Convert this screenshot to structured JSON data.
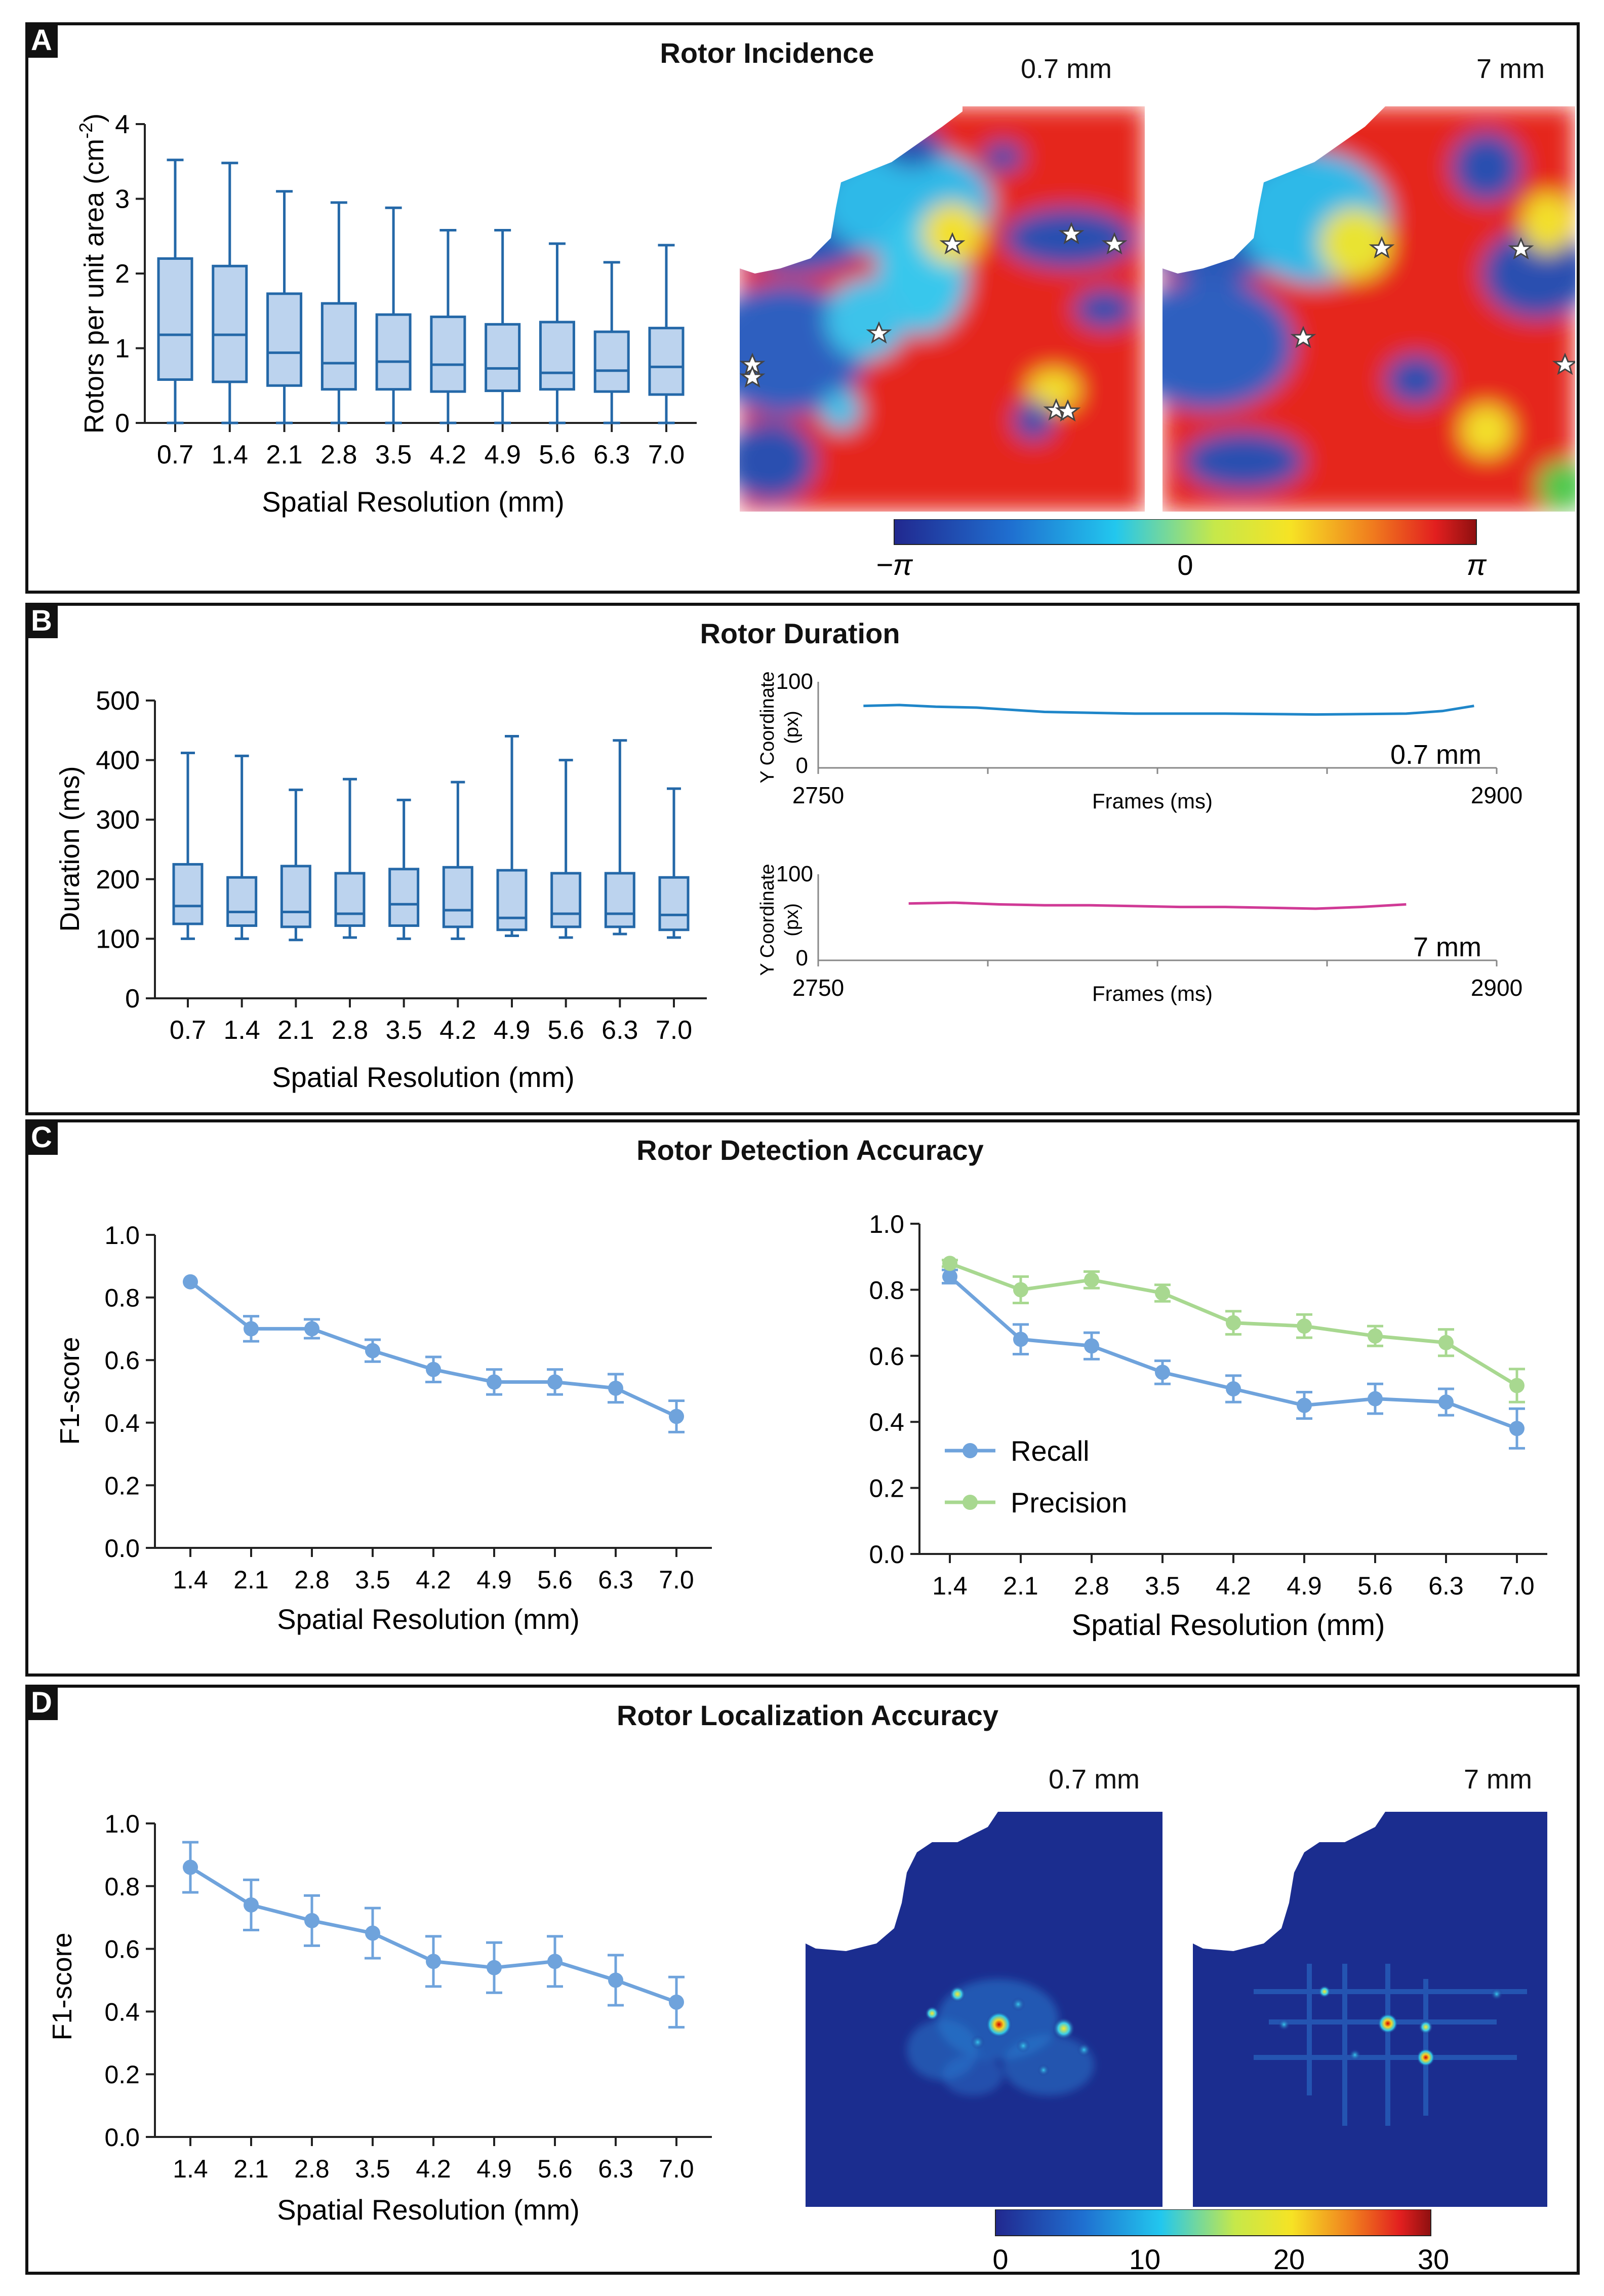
{
  "panels": {
    "A": {
      "letter": "A",
      "title": "Rotor Incidence",
      "map_labels": [
        "0.7 mm",
        "7 mm"
      ],
      "colorbar": {
        "min_label": "−π",
        "mid_label": "0",
        "max_label": "π"
      }
    },
    "B": {
      "letter": "B",
      "title": "Rotor Duration",
      "trace_labels": [
        "0.7 mm",
        "7 mm"
      ]
    },
    "C": {
      "letter": "C",
      "title": "Rotor Detection Accuracy"
    },
    "D": {
      "letter": "D",
      "title": "Rotor Localization Accuracy",
      "map_labels": [
        "0.7 mm",
        "7 mm"
      ],
      "colorbar": {
        "ticks": [
          "0",
          "10",
          "20",
          "30"
        ]
      }
    }
  },
  "colors": {
    "box_fill": "#bcd3ee",
    "box_stroke": "#2468a8",
    "recall": "#6fa3dc",
    "precision": "#a8d890",
    "trace1": "#1f86c9",
    "trace2": "#d03a96"
  },
  "chart_data": [
    {
      "id": "A-box",
      "type": "box",
      "title": "",
      "xlabel": "Spatial Resolution (mm)",
      "ylabel": "Rotors per unit area (cm-2)",
      "ylabel_main": "Rotors per unit area (cm",
      "ylabel_sup": "-2",
      "ylabel_end": ")",
      "ylim": [
        0,
        4
      ],
      "yticks": [
        "0",
        "1",
        "2",
        "3",
        "4"
      ],
      "categories": [
        "0.7",
        "1.4",
        "2.1",
        "2.8",
        "3.5",
        "4.2",
        "4.9",
        "5.6",
        "6.3",
        "7.0"
      ],
      "boxes": [
        {
          "min": 0,
          "q1": 0.58,
          "median": 1.18,
          "q3": 2.2,
          "max": 3.52
        },
        {
          "min": 0,
          "q1": 0.55,
          "median": 1.18,
          "q3": 2.1,
          "max": 3.48
        },
        {
          "min": 0,
          "q1": 0.5,
          "median": 0.94,
          "q3": 1.73,
          "max": 3.1
        },
        {
          "min": 0,
          "q1": 0.45,
          "median": 0.8,
          "q3": 1.6,
          "max": 2.95
        },
        {
          "min": 0,
          "q1": 0.45,
          "median": 0.82,
          "q3": 1.45,
          "max": 2.88
        },
        {
          "min": 0,
          "q1": 0.42,
          "median": 0.78,
          "q3": 1.42,
          "max": 2.58
        },
        {
          "min": 0,
          "q1": 0.43,
          "median": 0.73,
          "q3": 1.32,
          "max": 2.58
        },
        {
          "min": 0,
          "q1": 0.45,
          "median": 0.67,
          "q3": 1.35,
          "max": 2.4
        },
        {
          "min": 0,
          "q1": 0.42,
          "median": 0.7,
          "q3": 1.22,
          "max": 2.15
        },
        {
          "min": 0,
          "q1": 0.38,
          "median": 0.75,
          "q3": 1.27,
          "max": 2.38
        }
      ]
    },
    {
      "id": "B-box",
      "type": "box",
      "title": "",
      "xlabel": "Spatial Resolution (mm)",
      "ylabel": "Duration (ms)",
      "ylim": [
        0,
        500
      ],
      "yticks": [
        "0",
        "100",
        "200",
        "300",
        "400",
        "500"
      ],
      "categories": [
        "0.7",
        "1.4",
        "2.1",
        "2.8",
        "3.5",
        "4.2",
        "4.9",
        "5.6",
        "6.3",
        "7.0"
      ],
      "boxes": [
        {
          "min": 100,
          "q1": 125,
          "median": 155,
          "q3": 225,
          "max": 412
        },
        {
          "min": 100,
          "q1": 122,
          "median": 145,
          "q3": 203,
          "max": 407
        },
        {
          "min": 98,
          "q1": 120,
          "median": 145,
          "q3": 222,
          "max": 350
        },
        {
          "min": 102,
          "q1": 122,
          "median": 142,
          "q3": 210,
          "max": 368
        },
        {
          "min": 100,
          "q1": 122,
          "median": 158,
          "q3": 217,
          "max": 333
        },
        {
          "min": 100,
          "q1": 120,
          "median": 148,
          "q3": 220,
          "max": 363
        },
        {
          "min": 105,
          "q1": 115,
          "median": 135,
          "q3": 215,
          "max": 440
        },
        {
          "min": 102,
          "q1": 120,
          "median": 142,
          "q3": 210,
          "max": 400
        },
        {
          "min": 108,
          "q1": 120,
          "median": 142,
          "q3": 210,
          "max": 433
        },
        {
          "min": 102,
          "q1": 115,
          "median": 140,
          "q3": 203,
          "max": 352
        }
      ]
    },
    {
      "id": "B-trace1",
      "type": "line",
      "title": "",
      "xlabel": "Frames (ms)",
      "ylabel": "Y Coordinate (px)",
      "ylabel_l1": "Y Coordinate",
      "ylabel_l2": "(px)",
      "xlim": [
        2750,
        2900
      ],
      "ylim": [
        0,
        100
      ],
      "xtick_labels": [
        "2750",
        "2900"
      ],
      "ytick_labels": [
        "0",
        "100"
      ],
      "x": [
        2760,
        2768,
        2776,
        2785,
        2800,
        2820,
        2840,
        2860,
        2880,
        2888,
        2895
      ],
      "y": [
        72,
        73,
        71,
        70,
        65,
        63,
        63,
        62,
        63,
        66,
        72
      ]
    },
    {
      "id": "B-trace2",
      "type": "line",
      "title": "",
      "xlabel": "Frames (ms)",
      "ylabel": "Y Coordinate (px)",
      "ylabel_l1": "Y Coordinate",
      "ylabel_l2": "(px)",
      "xlim": [
        2750,
        2900
      ],
      "ylim": [
        0,
        100
      ],
      "xtick_labels": [
        "2750",
        "2900"
      ],
      "ytick_labels": [
        "0",
        "100"
      ],
      "x": [
        2770,
        2780,
        2790,
        2800,
        2810,
        2820,
        2830,
        2840,
        2850,
        2860,
        2870,
        2880
      ],
      "y": [
        66,
        67,
        65,
        64,
        64,
        63,
        62,
        62,
        61,
        60,
        62,
        65
      ]
    },
    {
      "id": "C-f1",
      "type": "line",
      "title": "",
      "xlabel": "Spatial Resolution (mm)",
      "ylabel": "F1-score",
      "ylim": [
        0,
        1
      ],
      "yticks": [
        "0.0",
        "0.2",
        "0.4",
        "0.6",
        "0.8",
        "1.0"
      ],
      "categories": [
        "1.4",
        "2.1",
        "2.8",
        "3.5",
        "4.2",
        "4.9",
        "5.6",
        "6.3",
        "7.0"
      ],
      "series": [
        {
          "name": "F1-score",
          "values": [
            0.85,
            0.7,
            0.7,
            0.63,
            0.57,
            0.53,
            0.53,
            0.51,
            0.42
          ],
          "errors": [
            0,
            0.04,
            0.03,
            0.035,
            0.04,
            0.04,
            0.04,
            0.045,
            0.05
          ]
        }
      ]
    },
    {
      "id": "C-rp",
      "type": "line",
      "title": "",
      "xlabel": "Spatial Resolution (mm)",
      "ylabel": "",
      "ylim": [
        0,
        1
      ],
      "yticks": [
        "0.0",
        "0.2",
        "0.4",
        "0.6",
        "0.8",
        "1.0"
      ],
      "categories": [
        "1.4",
        "2.1",
        "2.8",
        "3.5",
        "4.2",
        "4.9",
        "5.6",
        "6.3",
        "7.0"
      ],
      "legend": [
        "Recall",
        "Precision"
      ],
      "series": [
        {
          "name": "Recall",
          "values": [
            0.84,
            0.65,
            0.63,
            0.55,
            0.5,
            0.45,
            0.47,
            0.46,
            0.38
          ],
          "errors": [
            0.02,
            0.045,
            0.04,
            0.035,
            0.04,
            0.04,
            0.045,
            0.04,
            0.06
          ]
        },
        {
          "name": "Precision",
          "values": [
            0.88,
            0.8,
            0.83,
            0.79,
            0.7,
            0.69,
            0.66,
            0.64,
            0.51
          ],
          "errors": [
            0.01,
            0.04,
            0.025,
            0.025,
            0.035,
            0.035,
            0.03,
            0.04,
            0.05
          ]
        }
      ]
    },
    {
      "id": "D-f1",
      "type": "line",
      "title": "",
      "xlabel": "Spatial Resolution (mm)",
      "ylabel": "F1-score",
      "ylim": [
        0,
        1
      ],
      "yticks": [
        "0.0",
        "0.2",
        "0.4",
        "0.6",
        "0.8",
        "1.0"
      ],
      "categories": [
        "1.4",
        "2.1",
        "2.8",
        "3.5",
        "4.2",
        "4.9",
        "5.6",
        "6.3",
        "7.0"
      ],
      "series": [
        {
          "name": "F1-score",
          "values": [
            0.86,
            0.74,
            0.69,
            0.65,
            0.56,
            0.54,
            0.56,
            0.5,
            0.43
          ],
          "errors": [
            0.08,
            0.08,
            0.08,
            0.08,
            0.08,
            0.08,
            0.08,
            0.08,
            0.08
          ]
        }
      ]
    }
  ]
}
